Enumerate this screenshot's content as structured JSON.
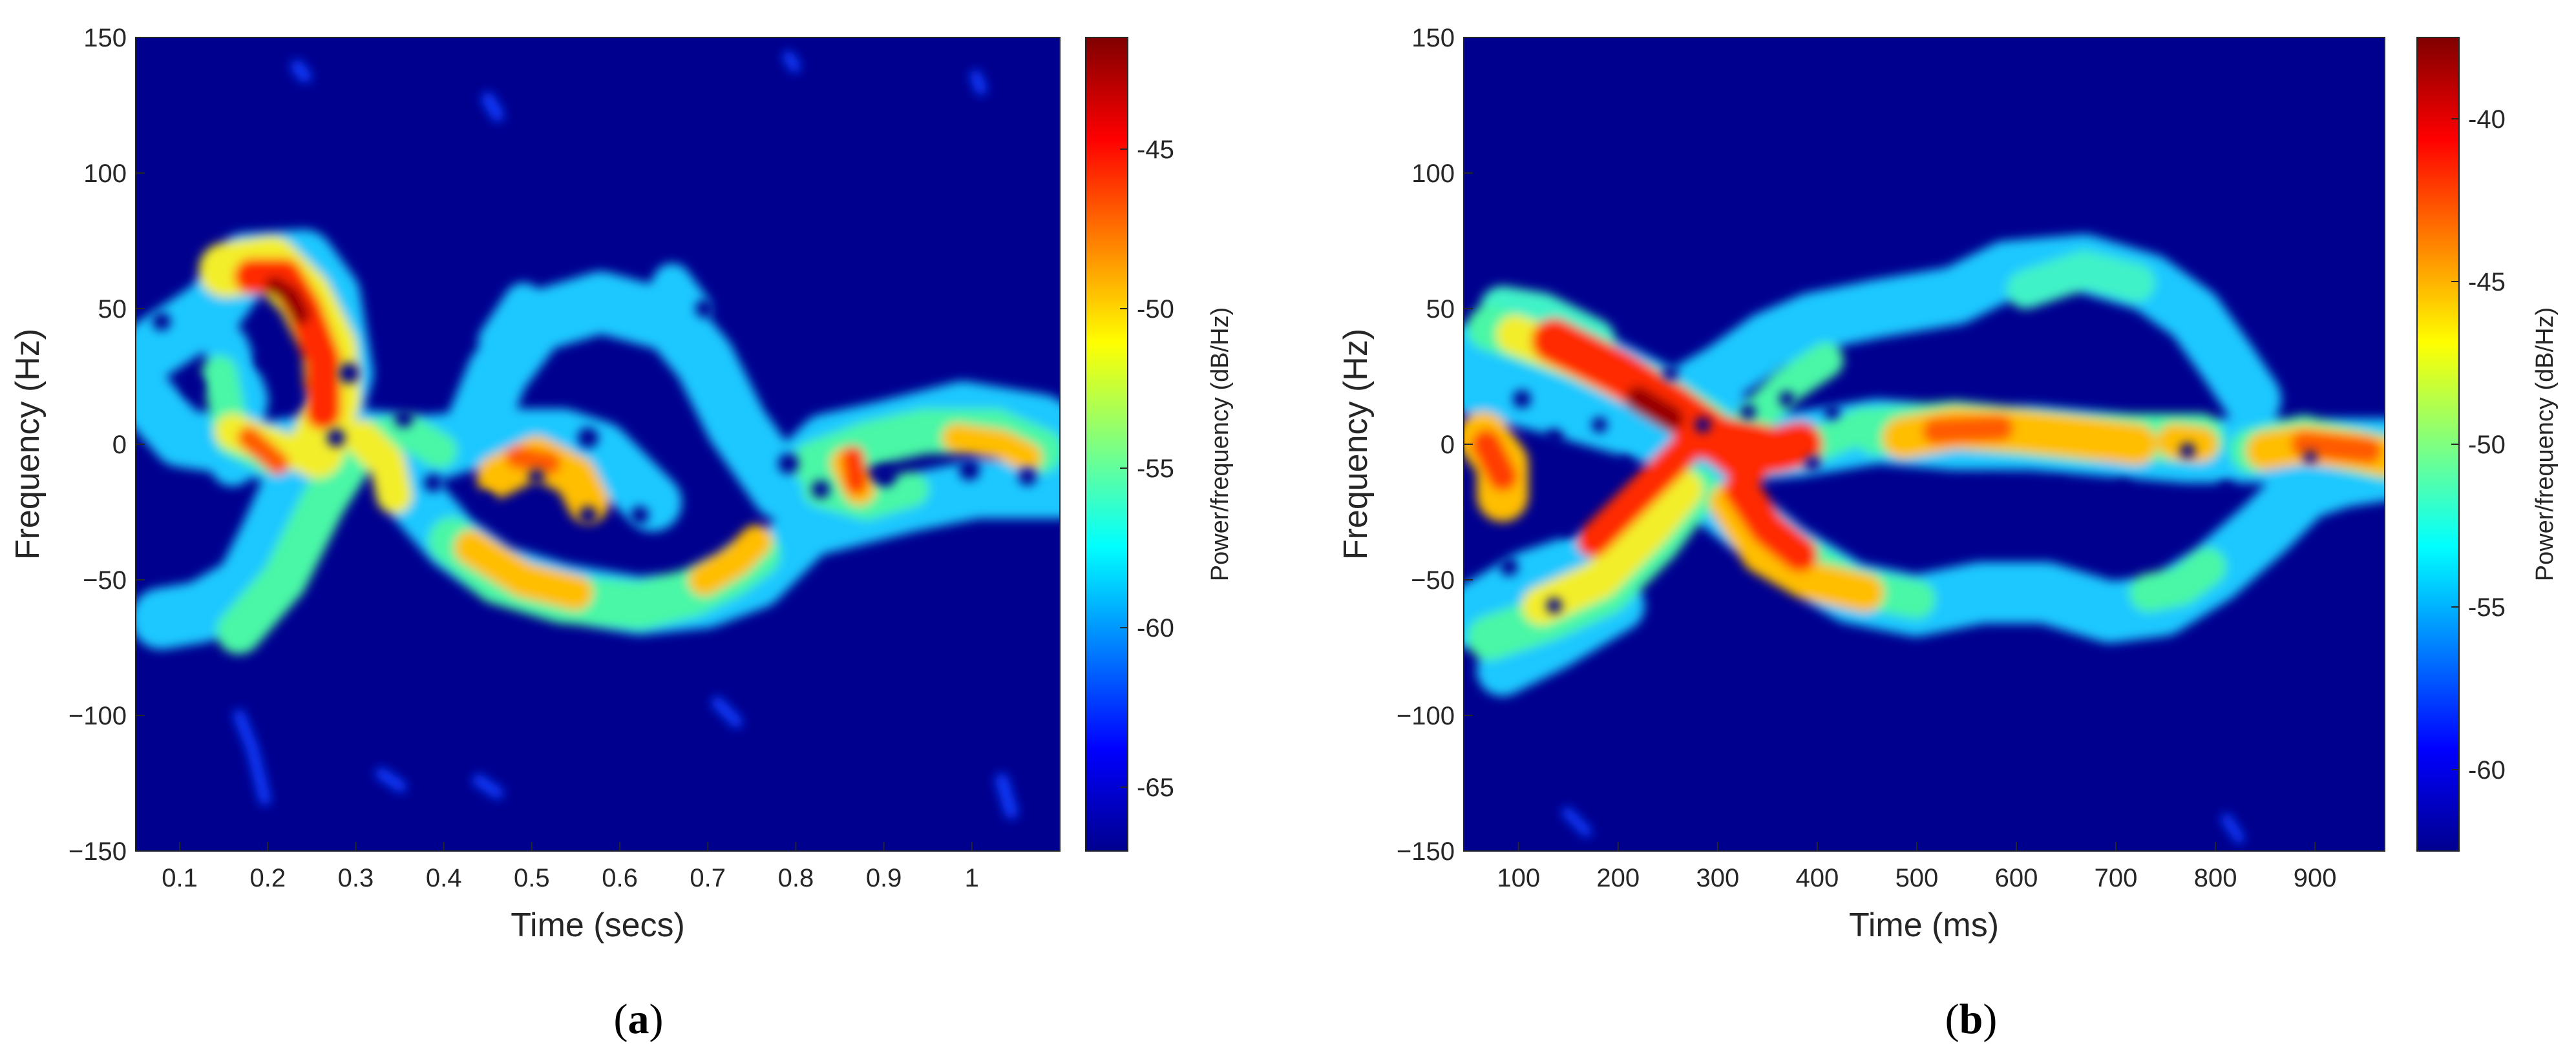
{
  "chart_data": [
    {
      "type": "heatmap",
      "panel_label": "a",
      "xlabel": "Time (secs)",
      "ylabel": "Frequency (Hz)",
      "colorbar_label": "Power/frequency (dB/Hz)",
      "colormap": "jet",
      "xlim": [
        0.05,
        1.1
      ],
      "ylim": [
        -150,
        150
      ],
      "clim": [
        -67,
        -41.5
      ],
      "xticks": [
        0.1,
        0.2,
        0.3,
        0.4,
        0.5,
        0.6,
        0.7,
        0.8,
        0.9,
        1
      ],
      "xtick_labels": [
        "0.1",
        "0.2",
        "0.3",
        "0.4",
        "0.5",
        "0.6",
        "0.7",
        "0.8",
        "0.9",
        "1"
      ],
      "yticks": [
        150,
        100,
        50,
        0,
        -50,
        -100,
        -150
      ],
      "ytick_labels": [
        "150",
        "100",
        "50",
        "0",
        "−50",
        "−100",
        "−150"
      ],
      "cticks": [
        -45,
        -50,
        -55,
        -60,
        -65
      ],
      "ctick_labels": [
        "-45",
        "-50",
        "-55",
        "-60",
        "-65"
      ],
      "features": [
        {
          "t": 0.22,
          "f": 58,
          "power": -41.8
        },
        {
          "t": 0.2,
          "f": 68,
          "power": -45
        },
        {
          "t": 0.245,
          "f": 38,
          "power": -46
        },
        {
          "t": 0.255,
          "f": 20,
          "power": -47
        },
        {
          "t": 0.2,
          "f": 10,
          "power": -49
        },
        {
          "t": 0.32,
          "f": 5,
          "power": -50
        },
        {
          "t": 0.47,
          "f": 5,
          "power": -47
        },
        {
          "t": 0.44,
          "f": -45,
          "power": -49
        },
        {
          "t": 0.85,
          "f": 3,
          "power": -47.5
        },
        {
          "t": 1.0,
          "f": 5,
          "power": -50
        },
        {
          "t": 0.2,
          "f": -55,
          "power": -53
        },
        {
          "t": 0.7,
          "f": -45,
          "power": -52
        },
        {
          "t": 0.58,
          "f": -52,
          "power": -54
        }
      ]
    },
    {
      "type": "heatmap",
      "panel_label": "b",
      "xlabel": "Time (ms)",
      "ylabel": "Frequency (Hz)",
      "colorbar_label": "Power/frequency (dB/Hz)",
      "colormap": "jet",
      "xlim": [
        45,
        970
      ],
      "ylim": [
        -150,
        150
      ],
      "clim": [
        -62.5,
        -37.5
      ],
      "xticks": [
        100,
        200,
        300,
        400,
        500,
        600,
        700,
        800,
        900
      ],
      "xtick_labels": [
        "100",
        "200",
        "300",
        "400",
        "500",
        "600",
        "700",
        "800",
        "900"
      ],
      "yticks": [
        150,
        100,
        50,
        0,
        -50,
        -100,
        -150
      ],
      "ytick_labels": [
        "150",
        "100",
        "50",
        "0",
        "−50",
        "−100",
        "−150"
      ],
      "cticks": [
        -40,
        -45,
        -50,
        -55,
        -60
      ],
      "ctick_labels": [
        "-40",
        "-45",
        "-50",
        "-55",
        "-60"
      ],
      "features": [
        {
          "t": 240,
          "f": 30,
          "power": -38
        },
        {
          "t": 300,
          "f": 5,
          "power": -39
        },
        {
          "t": 350,
          "f": 5,
          "power": -41
        },
        {
          "t": 360,
          "f": -35,
          "power": -42
        },
        {
          "t": 160,
          "f": 55,
          "power": -44
        },
        {
          "t": 100,
          "f": -3,
          "power": -44
        },
        {
          "t": 230,
          "f": -35,
          "power": -44
        },
        {
          "t": 600,
          "f": 5,
          "power": -44
        },
        {
          "t": 900,
          "f": 2,
          "power": -44
        },
        {
          "t": 720,
          "f": -60,
          "power": -50
        },
        {
          "t": 650,
          "f": 65,
          "power": -54
        }
      ]
    }
  ]
}
